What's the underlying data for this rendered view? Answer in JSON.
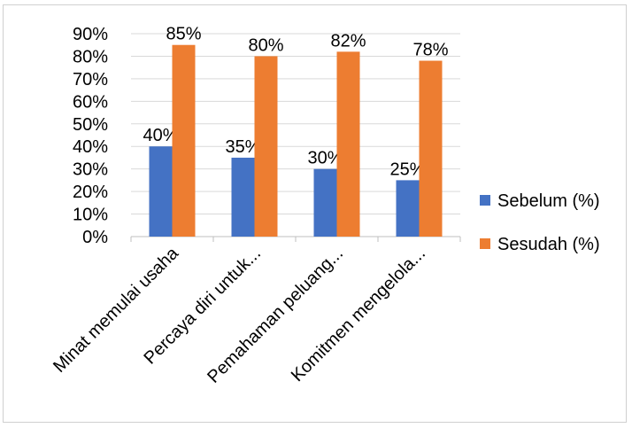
{
  "chart_data": {
    "type": "bar",
    "categories": [
      "Minat memulai usaha",
      "Percaya diri untuk...",
      "Pemahaman peluang...",
      "Komitmen mengelola..."
    ],
    "series": [
      {
        "name": "Sebelum (%)",
        "values": [
          40,
          35,
          30,
          25
        ],
        "labels": [
          "40%",
          "35%",
          "30%",
          "25%"
        ],
        "color": "#4472C4"
      },
      {
        "name": "Sesudah (%)",
        "values": [
          85,
          80,
          82,
          78
        ],
        "labels": [
          "85%",
          "80%",
          "82%",
          "78%"
        ],
        "color": "#ED7D31"
      }
    ],
    "ylim": [
      0,
      90
    ],
    "yticks": [
      "0%",
      "10%",
      "20%",
      "30%",
      "40%",
      "50%",
      "60%",
      "70%",
      "80%",
      "90%"
    ],
    "grid": true,
    "legend_position": "right",
    "title": "",
    "xlabel": "",
    "ylabel": ""
  }
}
